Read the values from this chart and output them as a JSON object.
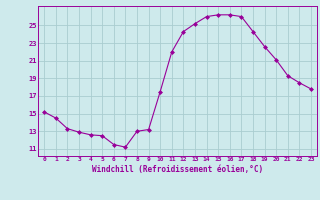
{
  "x": [
    0,
    1,
    2,
    3,
    4,
    5,
    6,
    7,
    8,
    9,
    10,
    11,
    12,
    13,
    14,
    15,
    16,
    17,
    18,
    19,
    20,
    21,
    22,
    23
  ],
  "y": [
    15.2,
    14.5,
    13.3,
    12.9,
    12.6,
    12.5,
    11.5,
    11.2,
    13.0,
    13.2,
    17.5,
    22.0,
    24.3,
    25.2,
    26.0,
    26.2,
    26.2,
    26.0,
    24.3,
    22.6,
    21.1,
    19.3,
    18.5,
    17.8
  ],
  "line_color": "#990099",
  "marker": "D",
  "marker_size": 2.0,
  "bg_color": "#ceeaec",
  "grid_color": "#aacdd0",
  "xlabel": "Windchill (Refroidissement éolien,°C)",
  "xlabel_color": "#990099",
  "ylabel_ticks": [
    11,
    13,
    15,
    17,
    19,
    21,
    23,
    25
  ],
  "ylim": [
    10.2,
    27.2
  ],
  "xlim": [
    -0.5,
    23.5
  ],
  "xtick_labels": [
    "0",
    "1",
    "2",
    "3",
    "4",
    "5",
    "6",
    "7",
    "8",
    "9",
    "10",
    "11",
    "12",
    "13",
    "14",
    "15",
    "16",
    "17",
    "18",
    "19",
    "20",
    "21",
    "22",
    "23"
  ],
  "tick_color": "#990099",
  "spine_color": "#990099"
}
